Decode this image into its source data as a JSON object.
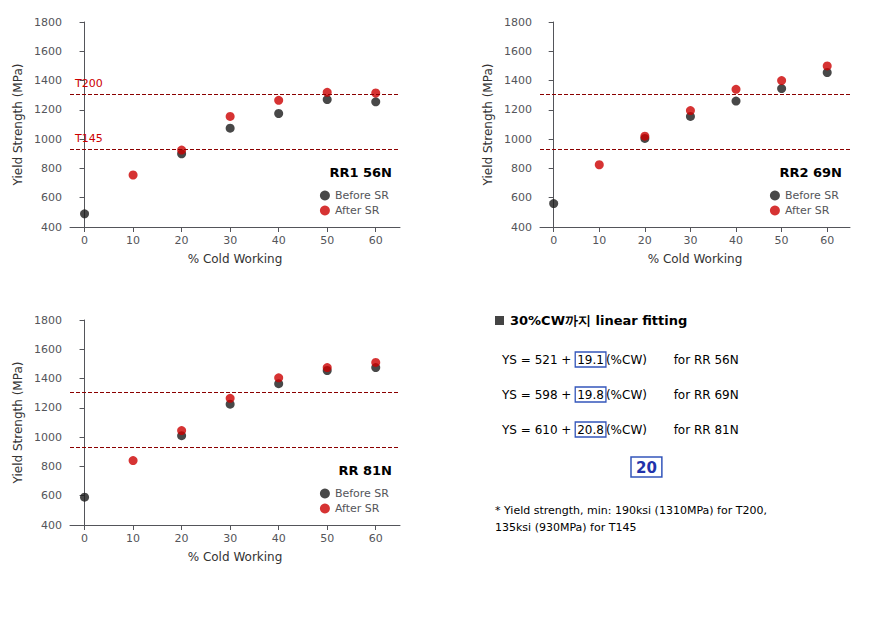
{
  "chart_data": [
    {
      "type": "scatter",
      "x": [
        0,
        10,
        20,
        30,
        40,
        50,
        60
      ],
      "series": [
        {
          "name": "Before SR",
          "color": "#1a1a1a",
          "values": [
            490,
            null,
            900,
            1075,
            1175,
            1270,
            1255
          ]
        },
        {
          "name": "After SR",
          "color": "#cc0000",
          "values": [
            null,
            755,
            925,
            1155,
            1265,
            1320,
            1315
          ]
        }
      ],
      "xlabel": "% Cold Working",
      "ylabel": "Yield Strength (MPa)",
      "xlim": [
        -3,
        65
      ],
      "xticks": [
        0,
        10,
        20,
        30,
        40,
        50,
        60
      ],
      "ylim": [
        400,
        1800
      ],
      "yticks": [
        400,
        600,
        800,
        1000,
        1200,
        1400,
        1600,
        1800
      ],
      "grid": false,
      "legend": "lower right",
      "annotations": [
        "RR1 56N"
      ],
      "reference_lines": [
        {
          "value": 1310,
          "color": "#8b0000",
          "line_style": "dashed",
          "label": "T200",
          "label_color": "#cc0000"
        },
        {
          "value": 930,
          "color": "#8b0000",
          "line_style": "dashed",
          "label": "T145",
          "label_color": "#cc0000"
        }
      ]
    },
    {
      "type": "scatter",
      "x": [
        0,
        10,
        20,
        30,
        40,
        50,
        60
      ],
      "series": [
        {
          "name": "Before SR",
          "color": "#1a1a1a",
          "values": [
            560,
            null,
            1005,
            1155,
            1260,
            1345,
            1455
          ]
        },
        {
          "name": "After SR",
          "color": "#cc0000",
          "values": [
            null,
            825,
            1020,
            1195,
            1340,
            1400,
            1500
          ]
        }
      ],
      "xlabel": "% Cold Working",
      "ylabel": "Yield Strength (MPa)",
      "xlim": [
        -3,
        65
      ],
      "xticks": [
        0,
        10,
        20,
        30,
        40,
        50,
        60
      ],
      "ylim": [
        400,
        1800
      ],
      "yticks": [
        400,
        600,
        800,
        1000,
        1200,
        1400,
        1600,
        1800
      ],
      "grid": false,
      "legend": "lower right",
      "annotations": [
        "RR2 69N"
      ],
      "reference_lines": [
        {
          "value": 1310,
          "color": "#8b0000",
          "line_style": "dashed"
        },
        {
          "value": 930,
          "color": "#8b0000",
          "line_style": "dashed"
        }
      ]
    },
    {
      "type": "scatter",
      "x": [
        0,
        10,
        20,
        30,
        40,
        50,
        60
      ],
      "series": [
        {
          "name": "Before SR",
          "color": "#1a1a1a",
          "values": [
            590,
            null,
            1010,
            1225,
            1365,
            1455,
            1475
          ]
        },
        {
          "name": "After SR",
          "color": "#cc0000",
          "values": [
            null,
            840,
            1045,
            1265,
            1405,
            1475,
            1510
          ]
        }
      ],
      "xlabel": "% Cold Working",
      "ylabel": "Yield Strength (MPa)",
      "xlim": [
        -3,
        65
      ],
      "xticks": [
        0,
        10,
        20,
        30,
        40,
        50,
        60
      ],
      "ylim": [
        400,
        1800
      ],
      "yticks": [
        400,
        600,
        800,
        1000,
        1200,
        1400,
        1600,
        1800
      ],
      "grid": false,
      "legend": "lower right",
      "annotations": [
        "RR 81N"
      ],
      "reference_lines": [
        {
          "value": 1310,
          "color": "#8b0000",
          "line_style": "dashed"
        },
        {
          "value": 930,
          "color": "#8b0000",
          "line_style": "dashed"
        }
      ]
    },
    {
      "type": "text",
      "title": "30%CW까지 linear fitting",
      "box_color": "#3355bb",
      "annotations": [
        {
          "pre": "YS = 521 + ",
          "boxed": "19.1",
          "post": "(%CW)       for RR 56N"
        },
        {
          "pre": "YS = 598 + ",
          "boxed": "19.8",
          "post": "(%CW)       for RR 69N"
        },
        {
          "pre": "YS = 610 + ",
          "boxed": "20.8",
          "post": "(%CW)       for RR 81N"
        },
        {
          "boxed": "20",
          "color": "#2233aa"
        },
        {
          "text": "* Yield strength, min: 190ksi (1310MPa) for T200,\n135ksi (930MPa) for T145"
        }
      ]
    }
  ]
}
